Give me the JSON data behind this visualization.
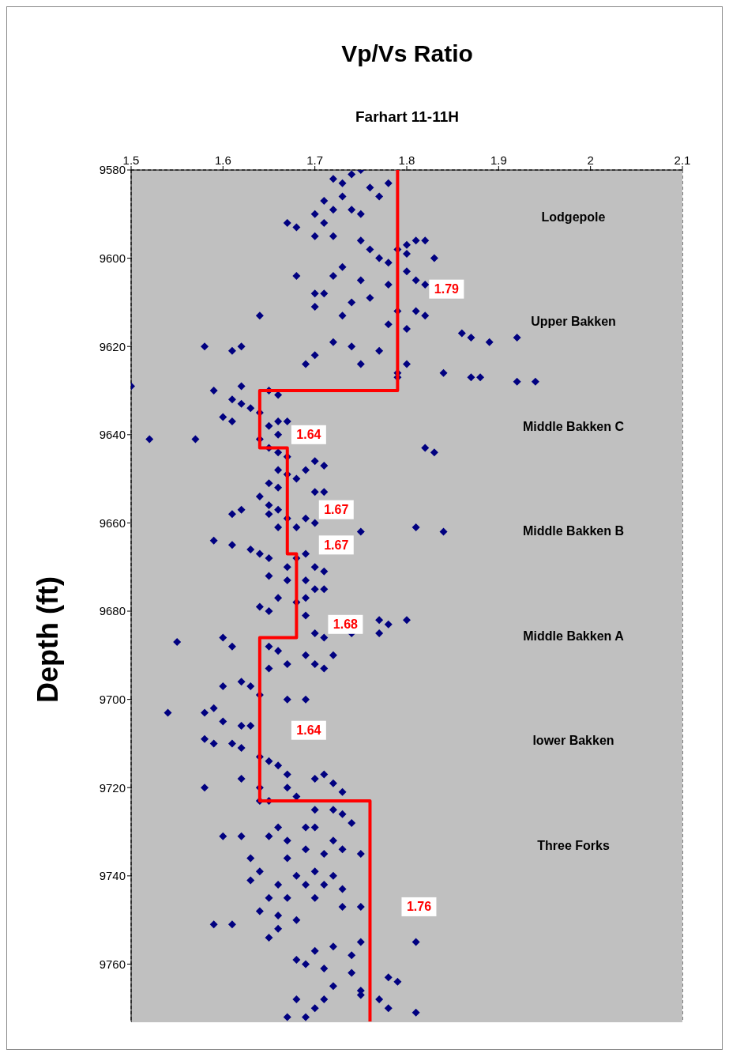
{
  "chart_data": {
    "type": "scatter",
    "title": "Vp/Vs Ratio",
    "subtitle": "Farhart 11-11H",
    "ylabel": "Depth (ft)",
    "xlim": [
      1.5,
      2.1
    ],
    "xticks": [
      1.5,
      1.6,
      1.7,
      1.8,
      1.9,
      2,
      2.1
    ],
    "ylim": [
      9773,
      9580
    ],
    "yticks": [
      9580,
      9600,
      9620,
      9640,
      9660,
      9680,
      9700,
      9720,
      9740,
      9760
    ],
    "grid": true,
    "marker": "diamond",
    "series": [
      {
        "color": "#000080",
        "x": [
          1.75,
          1.74,
          1.72,
          1.73,
          1.78,
          1.76,
          1.77,
          1.71,
          1.73,
          1.72,
          1.7,
          1.67,
          1.68,
          1.71,
          1.74,
          1.75,
          1.7,
          1.72,
          1.75,
          1.76,
          1.79,
          1.8,
          1.81,
          1.82,
          1.77,
          1.78,
          1.8,
          1.83,
          1.73,
          1.8,
          1.68,
          1.72,
          1.75,
          1.78,
          1.81,
          1.82,
          1.7,
          1.71,
          1.76,
          1.74,
          1.79,
          1.81,
          1.82,
          1.64,
          1.7,
          1.73,
          1.78,
          1.8,
          1.86,
          1.87,
          1.89,
          1.92,
          1.72,
          1.74,
          1.77,
          1.62,
          1.61,
          1.58,
          1.7,
          1.69,
          1.75,
          1.8,
          1.79,
          1.79,
          1.84,
          1.87,
          1.88,
          1.92,
          1.94,
          1.5,
          1.59,
          1.62,
          1.65,
          1.66,
          1.61,
          1.62,
          1.63,
          1.64,
          1.6,
          1.61,
          1.66,
          1.67,
          1.65,
          1.66,
          1.52,
          1.57,
          1.64,
          1.65,
          1.82,
          1.83,
          1.66,
          1.67,
          1.7,
          1.71,
          1.66,
          1.67,
          1.68,
          1.69,
          1.65,
          1.66,
          1.7,
          1.71,
          1.64,
          1.65,
          1.66,
          1.61,
          1.62,
          1.65,
          1.67,
          1.69,
          1.7,
          1.66,
          1.68,
          1.75,
          1.81,
          1.84,
          1.59,
          1.61,
          1.63,
          1.64,
          1.65,
          1.68,
          1.69,
          1.67,
          1.7,
          1.71,
          1.65,
          1.67,
          1.69,
          1.7,
          1.71,
          1.66,
          1.68,
          1.69,
          1.64,
          1.65,
          1.69,
          1.77,
          1.78,
          1.8,
          1.74,
          1.77,
          1.7,
          1.71,
          1.55,
          1.6,
          1.61,
          1.65,
          1.66,
          1.69,
          1.72,
          1.67,
          1.7,
          1.65,
          1.71,
          1.62,
          1.63,
          1.6,
          1.64,
          1.67,
          1.69,
          1.54,
          1.58,
          1.59,
          1.6,
          1.62,
          1.63,
          1.58,
          1.59,
          1.61,
          1.62,
          1.64,
          1.65,
          1.66,
          1.67,
          1.7,
          1.71,
          1.62,
          1.58,
          1.64,
          1.67,
          1.72,
          1.73,
          1.68,
          1.64,
          1.65,
          1.7,
          1.72,
          1.73,
          1.66,
          1.69,
          1.7,
          1.74,
          1.6,
          1.62,
          1.65,
          1.67,
          1.72,
          1.73,
          1.69,
          1.63,
          1.67,
          1.71,
          1.75,
          1.64,
          1.68,
          1.7,
          1.72,
          1.63,
          1.66,
          1.69,
          1.71,
          1.73,
          1.65,
          1.67,
          1.7,
          1.64,
          1.66,
          1.68,
          1.73,
          1.75,
          1.59,
          1.61,
          1.66,
          1.65,
          1.81,
          1.72,
          1.75,
          1.7,
          1.68,
          1.74,
          1.69,
          1.71,
          1.74,
          1.78,
          1.79,
          1.72,
          1.75,
          1.75,
          1.77,
          1.68,
          1.71,
          1.7,
          1.78,
          1.81,
          1.67,
          1.69
        ],
        "values": [
          9580,
          9581,
          9582,
          9583,
          9583,
          9584,
          9586,
          9587,
          9586,
          9589,
          9590,
          9592,
          9593,
          9592,
          9589,
          9590,
          9595,
          9595,
          9596,
          9598,
          9598,
          9597,
          9596,
          9596,
          9600,
          9601,
          9599,
          9600,
          9602,
          9603,
          9604,
          9604,
          9605,
          9606,
          9605,
          9606,
          9608,
          9608,
          9609,
          9610,
          9612,
          9612,
          9613,
          9613,
          9611,
          9613,
          9615,
          9616,
          9617,
          9618,
          9619,
          9618,
          9619,
          9620,
          9621,
          9620,
          9621,
          9620,
          9622,
          9624,
          9624,
          9624,
          9626,
          9627,
          9626,
          9627,
          9627,
          9628,
          9628,
          9629,
          9630,
          9629,
          9630,
          9631,
          9632,
          9633,
          9634,
          9635,
          9636,
          9637,
          9637,
          9637,
          9638,
          9640,
          9641,
          9641,
          9641,
          9643,
          9643,
          9644,
          9644,
          9645,
          9646,
          9647,
          9648,
          9649,
          9650,
          9648,
          9651,
          9652,
          9653,
          9653,
          9654,
          9656,
          9657,
          9658,
          9657,
          9658,
          9659,
          9659,
          9660,
          9661,
          9661,
          9662,
          9661,
          9662,
          9664,
          9665,
          9666,
          9667,
          9668,
          9668,
          9667,
          9670,
          9670,
          9671,
          9672,
          9673,
          9673,
          9675,
          9675,
          9677,
          9678,
          9677,
          9679,
          9680,
          9681,
          9682,
          9683,
          9682,
          9685,
          9685,
          9685,
          9686,
          9687,
          9686,
          9688,
          9688,
          9689,
          9690,
          9690,
          9692,
          9692,
          9693,
          9693,
          9696,
          9697,
          9697,
          9699,
          9700,
          9700,
          9703,
          9703,
          9702,
          9705,
          9706,
          9706,
          9709,
          9710,
          9710,
          9711,
          9713,
          9714,
          9715,
          9717,
          9718,
          9717,
          9718,
          9720,
          9720,
          9720,
          9719,
          9721,
          9722,
          9723,
          9723,
          9725,
          9725,
          9726,
          9729,
          9729,
          9729,
          9728,
          9731,
          9731,
          9731,
          9732,
          9732,
          9734,
          9734,
          9736,
          9736,
          9735,
          9735,
          9739,
          9740,
          9739,
          9740,
          9741,
          9742,
          9742,
          9742,
          9743,
          9745,
          9745,
          9745,
          9748,
          9749,
          9750,
          9747,
          9747,
          9751,
          9751,
          9752,
          9754,
          9755,
          9756,
          9755,
          9757,
          9759,
          9758,
          9760,
          9761,
          9762,
          9763,
          9764,
          9765,
          9766,
          9767,
          9768,
          9768,
          9768,
          9770,
          9770,
          9771,
          9772,
          9772
        ]
      },
      {
        "type": "line",
        "color": "#ff0000",
        "line_style": "solid",
        "marker": "none",
        "x": [
          1.79,
          1.79,
          1.64,
          1.64,
          1.67,
          1.67,
          1.68,
          1.68,
          1.64,
          1.64,
          1.76,
          1.76
        ],
        "values": [
          9580,
          9630,
          9630,
          9643,
          9643,
          9667,
          9667,
          9686,
          9686,
          9723,
          9723,
          9773
        ]
      }
    ],
    "annotations": [
      "Lodgepole",
      "Upper Bakken",
      "Middle Bakken  C",
      "Middle Bakken  B",
      "Middle Bakken  A",
      "lower Bakken",
      "Three Forks",
      {
        "text": "1.79",
        "x": 1.79,
        "y": 9607
      },
      {
        "text": "1.64",
        "x": 1.64,
        "y": 9640
      },
      {
        "text": "1.67",
        "x": 1.67,
        "y": 9657
      },
      {
        "text": "1.67",
        "x": 1.67,
        "y": 9665
      },
      {
        "text": "1.68",
        "x": 1.68,
        "y": 9683
      },
      {
        "text": "1.64",
        "x": 1.64,
        "y": 9707
      },
      {
        "text": "1.76",
        "x": 1.76,
        "y": 9747
      }
    ]
  }
}
